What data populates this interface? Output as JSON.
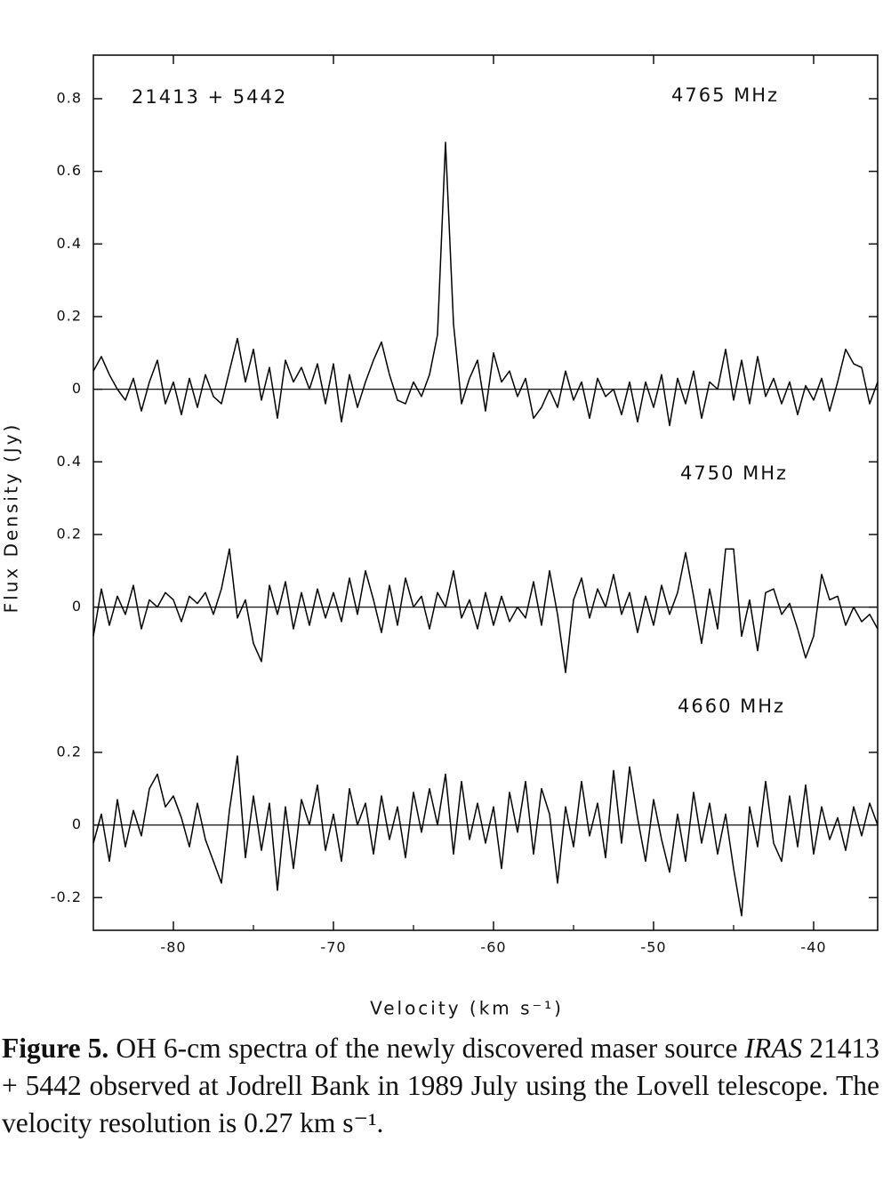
{
  "figure": {
    "ylabel": "Flux  Density   (Jy)",
    "xlabel": "Velocity    (km s⁻¹)",
    "caption": {
      "label": "Figure 5.",
      "text1": "OH 6-cm spectra of the newly discovered maser source",
      "source": "IRAS",
      "text2": "21413 + 5442 observed at Jodrell Bank in 1989 July using the Lovell telescope. The velocity resolution is 0.27 km s⁻¹."
    }
  },
  "chart_data": [
    {
      "type": "line",
      "title": "21413 + 5442",
      "label": "4765 MHz",
      "color": "#000000",
      "zero_line": true,
      "xlim": [
        -85,
        -36
      ],
      "ylim": [
        -0.1,
        0.92
      ],
      "yticks": [
        0,
        0.2,
        0.4,
        0.6,
        0.8
      ],
      "x": [
        -85,
        -84.5,
        -84,
        -83.5,
        -83,
        -82.5,
        -82,
        -81.5,
        -81,
        -80.5,
        -80,
        -79.5,
        -79,
        -78.5,
        -78,
        -77.5,
        -77,
        -76.5,
        -76,
        -75.5,
        -75,
        -74.5,
        -74,
        -73.5,
        -73,
        -72.5,
        -72,
        -71.5,
        -71,
        -70.5,
        -70,
        -69.5,
        -69,
        -68.5,
        -68,
        -67.5,
        -67,
        -66.5,
        -66,
        -65.5,
        -65,
        -64.5,
        -64,
        -63.5,
        -63,
        -62.5,
        -62,
        -61.5,
        -61,
        -60.5,
        -60,
        -59.5,
        -59,
        -58.5,
        -58,
        -57.5,
        -57,
        -56.5,
        -56,
        -55.5,
        -55,
        -54.5,
        -54,
        -53.5,
        -53,
        -52.5,
        -52,
        -51.5,
        -51,
        -50.5,
        -50,
        -49.5,
        -49,
        -48.5,
        -48,
        -47.5,
        -47,
        -46.5,
        -46,
        -45.5,
        -45,
        -44.5,
        -44,
        -43.5,
        -43,
        -42.5,
        -42,
        -41.5,
        -41,
        -40.5,
        -40,
        -39.5,
        -39,
        -38.5,
        -38,
        -37.5,
        -37,
        -36.5,
        -36
      ],
      "values": [
        0.05,
        0.09,
        0.04,
        0.0,
        -0.03,
        0.03,
        -0.06,
        0.02,
        0.08,
        -0.04,
        0.02,
        -0.07,
        0.03,
        -0.05,
        0.04,
        -0.02,
        -0.04,
        0.05,
        0.14,
        0.02,
        0.11,
        -0.03,
        0.06,
        -0.08,
        0.08,
        0.02,
        0.06,
        0.0,
        0.07,
        -0.04,
        0.07,
        -0.09,
        0.04,
        -0.05,
        0.02,
        0.08,
        0.13,
        0.04,
        -0.03,
        -0.04,
        0.02,
        -0.02,
        0.04,
        0.15,
        0.68,
        0.18,
        -0.04,
        0.03,
        0.08,
        -0.06,
        0.1,
        0.02,
        0.05,
        -0.02,
        0.03,
        -0.08,
        -0.05,
        0.0,
        -0.05,
        0.05,
        -0.03,
        0.02,
        -0.08,
        0.03,
        -0.02,
        0.0,
        -0.07,
        0.02,
        -0.09,
        0.02,
        -0.05,
        0.04,
        -0.1,
        0.03,
        -0.04,
        0.05,
        -0.08,
        0.02,
        0.0,
        0.11,
        -0.03,
        0.08,
        -0.04,
        0.09,
        -0.02,
        0.03,
        -0.04,
        0.02,
        -0.07,
        0.01,
        -0.03,
        0.03,
        -0.06,
        0.02,
        0.11,
        0.07,
        0.06,
        -0.04,
        0.02
      ]
    },
    {
      "type": "line",
      "label": "4750 MHz",
      "color": "#000000",
      "zero_line": true,
      "xlim": [
        -85,
        -36
      ],
      "ylim": [
        -0.3,
        0.5
      ],
      "yticks": [
        0,
        0.2,
        0.4
      ],
      "x": [
        -85,
        -84.5,
        -84,
        -83.5,
        -83,
        -82.5,
        -82,
        -81.5,
        -81,
        -80.5,
        -80,
        -79.5,
        -79,
        -78.5,
        -78,
        -77.5,
        -77,
        -76.5,
        -76,
        -75.5,
        -75,
        -74.5,
        -74,
        -73.5,
        -73,
        -72.5,
        -72,
        -71.5,
        -71,
        -70.5,
        -70,
        -69.5,
        -69,
        -68.5,
        -68,
        -67.5,
        -67,
        -66.5,
        -66,
        -65.5,
        -65,
        -64.5,
        -64,
        -63.5,
        -63,
        -62.5,
        -62,
        -61.5,
        -61,
        -60.5,
        -60,
        -59.5,
        -59,
        -58.5,
        -58,
        -57.5,
        -57,
        -56.5,
        -56,
        -55.5,
        -55,
        -54.5,
        -54,
        -53.5,
        -53,
        -52.5,
        -52,
        -51.5,
        -51,
        -50.5,
        -50,
        -49.5,
        -49,
        -48.5,
        -48,
        -47.5,
        -47,
        -46.5,
        -46,
        -45.5,
        -45,
        -44.5,
        -44,
        -43.5,
        -43,
        -42.5,
        -42,
        -41.5,
        -41,
        -40.5,
        -40,
        -39.5,
        -39,
        -38.5,
        -38,
        -37.5,
        -37,
        -36.5,
        -36
      ],
      "values": [
        -0.08,
        0.05,
        -0.05,
        0.03,
        -0.02,
        0.06,
        -0.06,
        0.02,
        0.0,
        0.04,
        0.02,
        -0.04,
        0.03,
        0.01,
        0.04,
        -0.02,
        0.05,
        0.16,
        -0.03,
        0.02,
        -0.1,
        -0.15,
        0.06,
        -0.02,
        0.07,
        -0.06,
        0.04,
        -0.05,
        0.05,
        -0.03,
        0.04,
        -0.04,
        0.08,
        -0.02,
        0.1,
        0.02,
        -0.07,
        0.06,
        -0.05,
        0.08,
        0.0,
        0.03,
        -0.06,
        0.04,
        0.0,
        0.1,
        -0.03,
        0.02,
        -0.06,
        0.04,
        -0.05,
        0.03,
        -0.04,
        0.0,
        -0.03,
        0.07,
        -0.05,
        0.1,
        -0.02,
        -0.18,
        0.02,
        0.08,
        -0.03,
        0.05,
        0.0,
        0.09,
        -0.02,
        0.04,
        -0.07,
        0.03,
        -0.05,
        0.06,
        -0.02,
        0.04,
        0.15,
        0.03,
        -0.1,
        0.05,
        -0.06,
        0.16,
        0.16,
        -0.08,
        0.02,
        -0.12,
        0.04,
        0.05,
        -0.02,
        0.01,
        -0.06,
        -0.14,
        -0.08,
        0.09,
        0.02,
        0.03,
        -0.05,
        0.0,
        -0.04,
        -0.02,
        -0.06
      ]
    },
    {
      "type": "line",
      "label": "4660 MHz",
      "color": "#000000",
      "zero_line": true,
      "xlim": [
        -85,
        -36
      ],
      "ylim": [
        -0.29,
        0.3
      ],
      "yticks": [
        -0.2,
        0,
        0.2
      ],
      "xticks": [
        -80,
        -70,
        -60,
        -50,
        -40
      ],
      "xminor_ticks": [
        -75,
        -65,
        -55,
        -45
      ],
      "x": [
        -85,
        -84.5,
        -84,
        -83.5,
        -83,
        -82.5,
        -82,
        -81.5,
        -81,
        -80.5,
        -80,
        -79.5,
        -79,
        -78.5,
        -78,
        -77.5,
        -77,
        -76.5,
        -76,
        -75.5,
        -75,
        -74.5,
        -74,
        -73.5,
        -73,
        -72.5,
        -72,
        -71.5,
        -71,
        -70.5,
        -70,
        -69.5,
        -69,
        -68.5,
        -68,
        -67.5,
        -67,
        -66.5,
        -66,
        -65.5,
        -65,
        -64.5,
        -64,
        -63.5,
        -63,
        -62.5,
        -62,
        -61.5,
        -61,
        -60.5,
        -60,
        -59.5,
        -59,
        -58.5,
        -58,
        -57.5,
        -57,
        -56.5,
        -56,
        -55.5,
        -55,
        -54.5,
        -54,
        -53.5,
        -53,
        -52.5,
        -52,
        -51.5,
        -51,
        -50.5,
        -50,
        -49.5,
        -49,
        -48.5,
        -48,
        -47.5,
        -47,
        -46.5,
        -46,
        -45.5,
        -45,
        -44.5,
        -44,
        -43.5,
        -43,
        -42.5,
        -42,
        -41.5,
        -41,
        -40.5,
        -40,
        -39.5,
        -39,
        -38.5,
        -38,
        -37.5,
        -37,
        -36.5,
        -36
      ],
      "values": [
        -0.05,
        0.03,
        -0.1,
        0.07,
        -0.06,
        0.04,
        -0.03,
        0.1,
        0.14,
        0.05,
        0.08,
        0.02,
        -0.06,
        0.06,
        -0.04,
        -0.1,
        -0.16,
        0.04,
        0.19,
        -0.09,
        0.08,
        -0.07,
        0.06,
        -0.18,
        0.05,
        -0.12,
        0.07,
        0.0,
        0.11,
        -0.07,
        0.03,
        -0.1,
        0.1,
        0.0,
        0.06,
        -0.08,
        0.08,
        -0.04,
        0.05,
        -0.09,
        0.09,
        -0.02,
        0.1,
        0.0,
        0.14,
        -0.08,
        0.12,
        -0.04,
        0.06,
        -0.05,
        0.05,
        -0.12,
        0.09,
        -0.02,
        0.12,
        -0.08,
        0.1,
        0.03,
        -0.16,
        0.05,
        -0.06,
        0.12,
        -0.03,
        0.06,
        -0.09,
        0.15,
        -0.05,
        0.16,
        0.02,
        -0.1,
        0.07,
        -0.04,
        -0.13,
        0.03,
        -0.1,
        0.09,
        -0.05,
        0.06,
        -0.08,
        0.03,
        -0.12,
        -0.25,
        0.05,
        -0.06,
        0.12,
        -0.05,
        -0.1,
        0.08,
        -0.06,
        0.11,
        -0.08,
        0.05,
        -0.04,
        0.02,
        -0.07,
        0.05,
        -0.03,
        0.06,
        0.0
      ]
    }
  ]
}
